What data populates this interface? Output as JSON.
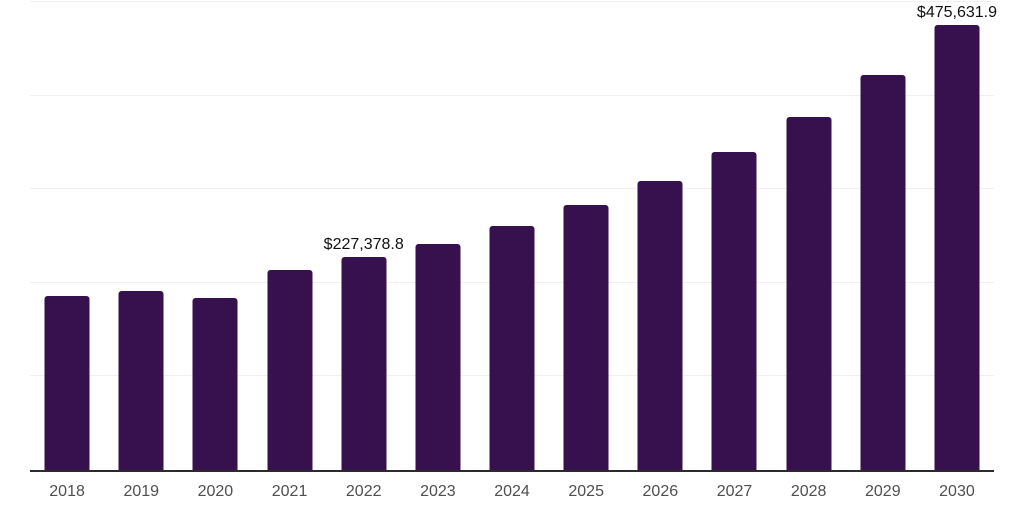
{
  "chart_data": {
    "type": "bar",
    "categories": [
      "2018",
      "2019",
      "2020",
      "2021",
      "2022",
      "2023",
      "2024",
      "2025",
      "2026",
      "2027",
      "2028",
      "2029",
      "2030"
    ],
    "values": [
      185800,
      191100,
      184000,
      213700,
      227378.8,
      241800,
      260900,
      283200,
      308600,
      339400,
      377200,
      421500,
      475631.9
    ],
    "data_labels": [
      {
        "category": "2022",
        "label": "$227,378.8"
      },
      {
        "category": "2030",
        "label": "$475,631.9"
      }
    ],
    "title": "",
    "xlabel": "",
    "ylabel": "",
    "ylim": [
      0,
      500000
    ],
    "gridline_step": 100000,
    "grid": true,
    "legend": "none",
    "y_tick_labels_visible": false,
    "bar_color": "#36114D",
    "colors": {
      "background": "#ffffff",
      "bar": "#36114D",
      "gridline": "#f0f0f0",
      "axis_line": "#2b2b2b",
      "x_tick_label": "#4f4f4f",
      "data_label": "#111111"
    }
  }
}
